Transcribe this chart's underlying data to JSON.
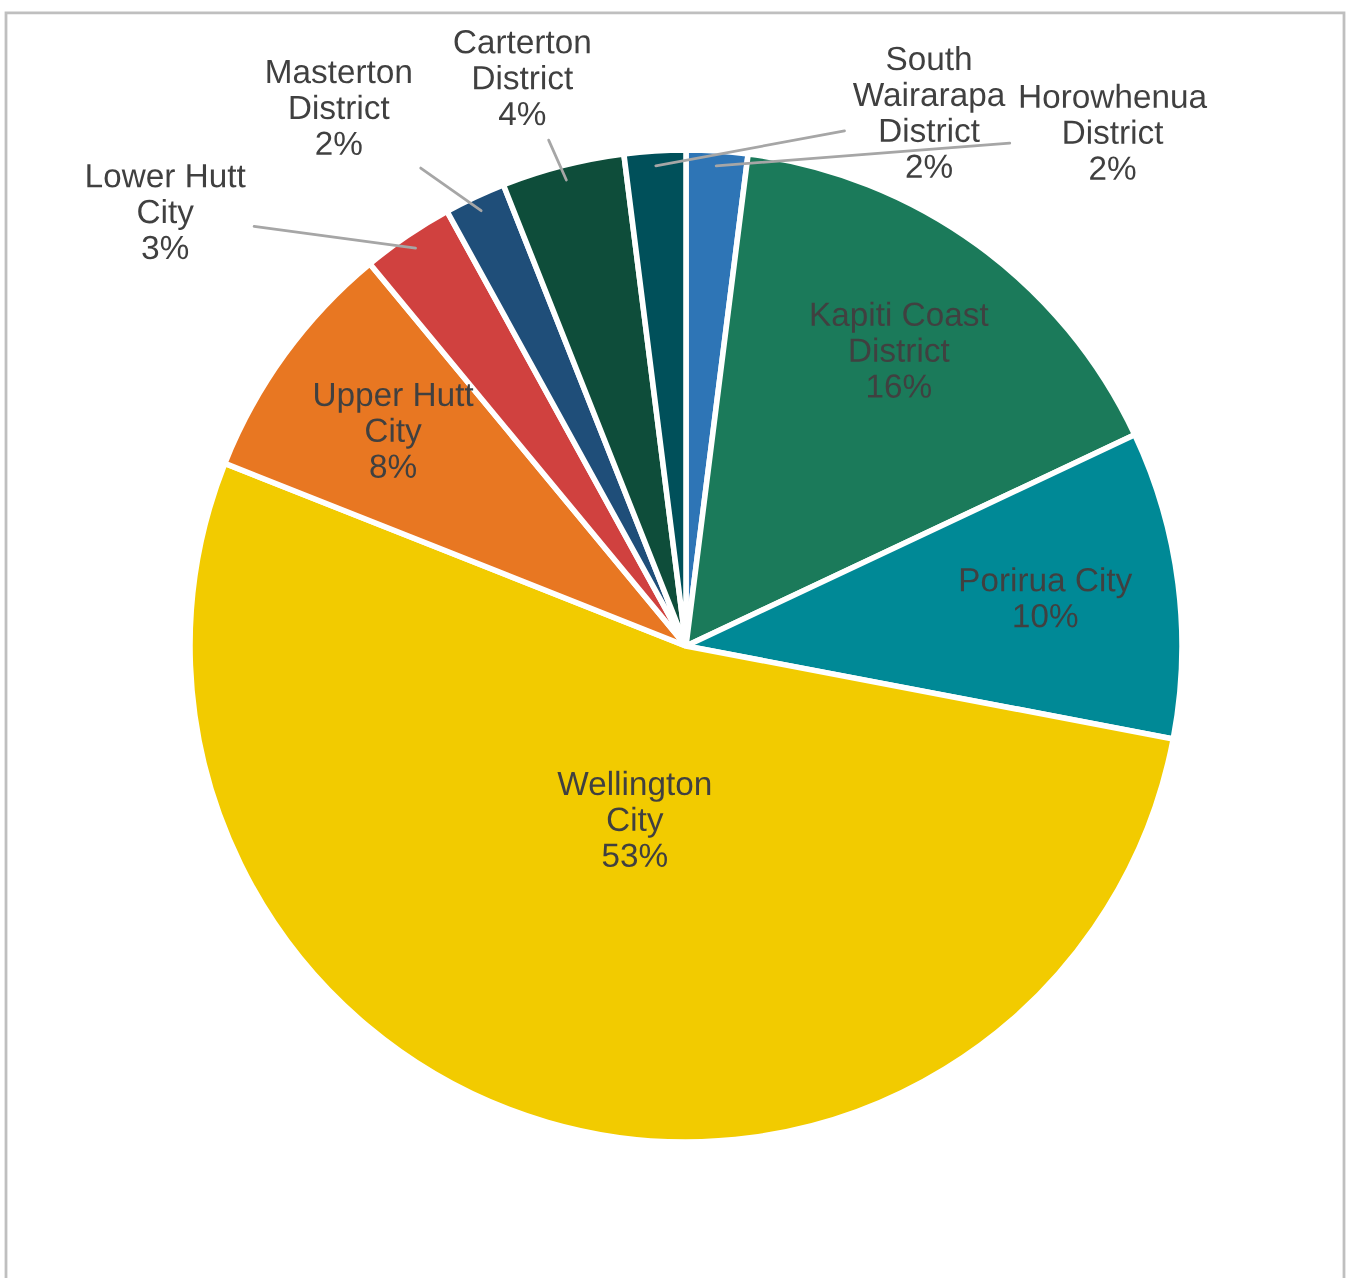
{
  "chart_data": {
    "type": "pie",
    "categories": [
      "Horowhenua\nDistrict",
      "Kapiti Coast\nDistrict",
      "Porirua City",
      "Wellington\nCity",
      "Upper Hutt\nCity",
      "Lower Hutt\nCity",
      "Masterton\nDistrict",
      "Carterton\nDistrict",
      "South\nWairarapa\nDistrict"
    ],
    "values": [
      2,
      16,
      10,
      53,
      8,
      3,
      2,
      4,
      2
    ],
    "value_labels": [
      "2%",
      "16%",
      "10%",
      "53%",
      "8%",
      "3%",
      "2%",
      "4%",
      "2%"
    ],
    "colors": [
      "#2e75b6",
      "#1b7a5a",
      "#008996",
      "#f2cb00",
      "#e87722",
      "#d0413f",
      "#1f4e79",
      "#0e4d3a",
      "#00505a"
    ],
    "legend": false
  }
}
